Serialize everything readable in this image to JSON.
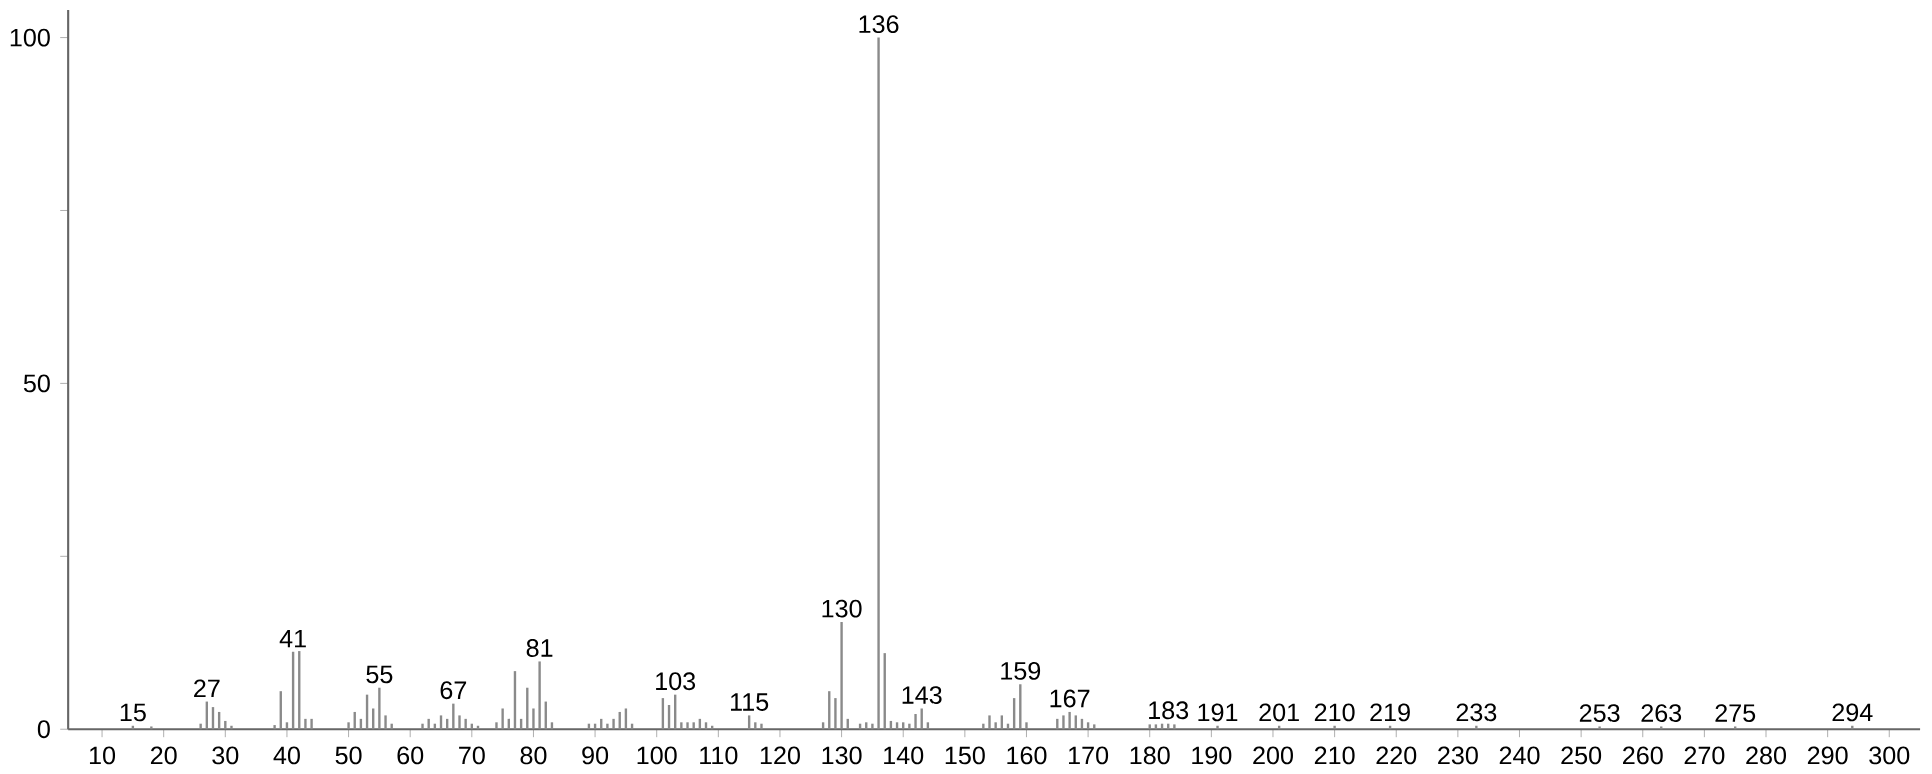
{
  "chart_data": {
    "type": "bar",
    "color": "#8a8a8a",
    "xlim": [
      4.5,
      305
    ],
    "ylim": [
      0,
      104
    ],
    "xticks": [
      10,
      20,
      30,
      40,
      50,
      60,
      70,
      80,
      90,
      100,
      110,
      120,
      130,
      140,
      150,
      160,
      170,
      180,
      190,
      200,
      210,
      220,
      230,
      240,
      250,
      260,
      270,
      280,
      290,
      300
    ],
    "yticks": [
      0,
      {
        "value": 25,
        "label": null
      },
      50,
      {
        "value": 75,
        "label": null
      },
      100
    ],
    "x": [
      15,
      18,
      26,
      27,
      28,
      29,
      30,
      31,
      38,
      39,
      40,
      41,
      42,
      43,
      44,
      50,
      51,
      52,
      53,
      54,
      55,
      56,
      57,
      62,
      63,
      64,
      65,
      66,
      67,
      68,
      69,
      70,
      71,
      74,
      75,
      76,
      77,
      78,
      79,
      80,
      81,
      82,
      83,
      89,
      90,
      91,
      92,
      93,
      94,
      95,
      96,
      101,
      102,
      103,
      104,
      105,
      106,
      107,
      108,
      109,
      115,
      116,
      117,
      127,
      128,
      129,
      130,
      131,
      133,
      134,
      135,
      136,
      137,
      138,
      139,
      140,
      141,
      142,
      143,
      144,
      153,
      154,
      155,
      156,
      157,
      158,
      159,
      160,
      165,
      166,
      167,
      168,
      169,
      170,
      171,
      180,
      181,
      182,
      183,
      184,
      191,
      201,
      210,
      219,
      233,
      253,
      263,
      275,
      294
    ],
    "values": [
      0.5,
      0.4,
      0.8,
      4,
      3.2,
      2.5,
      1.2,
      0.5,
      0.6,
      5.5,
      1,
      11.2,
      11.3,
      1.5,
      1.5,
      1,
      2.5,
      1.5,
      5,
      3,
      6,
      2,
      0.8,
      0.8,
      1.5,
      0.8,
      2,
      1.5,
      3.7,
      2,
      1.5,
      0.8,
      0.5,
      1,
      3,
      1.5,
      8.4,
      1.5,
      6,
      3,
      9.8,
      4,
      1,
      0.8,
      0.8,
      1.5,
      0.8,
      1.5,
      2.5,
      3,
      0.8,
      4.5,
      3.5,
      5,
      1,
      1,
      1,
      1.5,
      1,
      0.5,
      2,
      1,
      0.8,
      1,
      5.5,
      4.5,
      15.5,
      1.5,
      0.8,
      1,
      0.8,
      100,
      11,
      1.2,
      1,
      1,
      0.8,
      2.2,
      3,
      1,
      0.8,
      2,
      1,
      2,
      0.8,
      4.5,
      6.5,
      1,
      1.5,
      2,
      2.5,
      2,
      1.5,
      1,
      0.7,
      0.7,
      0.7,
      0.8,
      0.8,
      0.7,
      0.5,
      0.5,
      0.5,
      0.5,
      0.5,
      0.4,
      0.4,
      0.4,
      0.5
    ],
    "annotations": [
      {
        "text": "15",
        "x": 15,
        "y": 0.5
      },
      {
        "text": "27",
        "x": 27,
        "y": 4
      },
      {
        "text": "41",
        "x": 41,
        "y": 11.2
      },
      {
        "text": "55",
        "x": 55,
        "y": 6
      },
      {
        "text": "67",
        "x": 67,
        "y": 3.7
      },
      {
        "text": "81",
        "x": 81,
        "y": 9.8
      },
      {
        "text": "103",
        "x": 103,
        "y": 5
      },
      {
        "text": "115",
        "x": 115,
        "y": 2
      },
      {
        "text": "130",
        "x": 130,
        "y": 15.5
      },
      {
        "text": "136",
        "x": 136,
        "y": 100
      },
      {
        "text": "143",
        "x": 143,
        "y": 3
      },
      {
        "text": "159",
        "x": 159,
        "y": 6.5
      },
      {
        "text": "167",
        "x": 167,
        "y": 2.5
      },
      {
        "text": "183",
        "x": 183,
        "y": 0.8
      },
      {
        "text": "191",
        "x": 191,
        "y": 0.5
      },
      {
        "text": "201",
        "x": 201,
        "y": 0.5
      },
      {
        "text": "210",
        "x": 210,
        "y": 0.5
      },
      {
        "text": "219",
        "x": 219,
        "y": 0.5
      },
      {
        "text": "233",
        "x": 233,
        "y": 0.5
      },
      {
        "text": "253",
        "x": 253,
        "y": 0.4
      },
      {
        "text": "263",
        "x": 263,
        "y": 0.4
      },
      {
        "text": "275",
        "x": 275,
        "y": 0.4
      },
      {
        "text": "294",
        "x": 294,
        "y": 0.5
      }
    ]
  }
}
